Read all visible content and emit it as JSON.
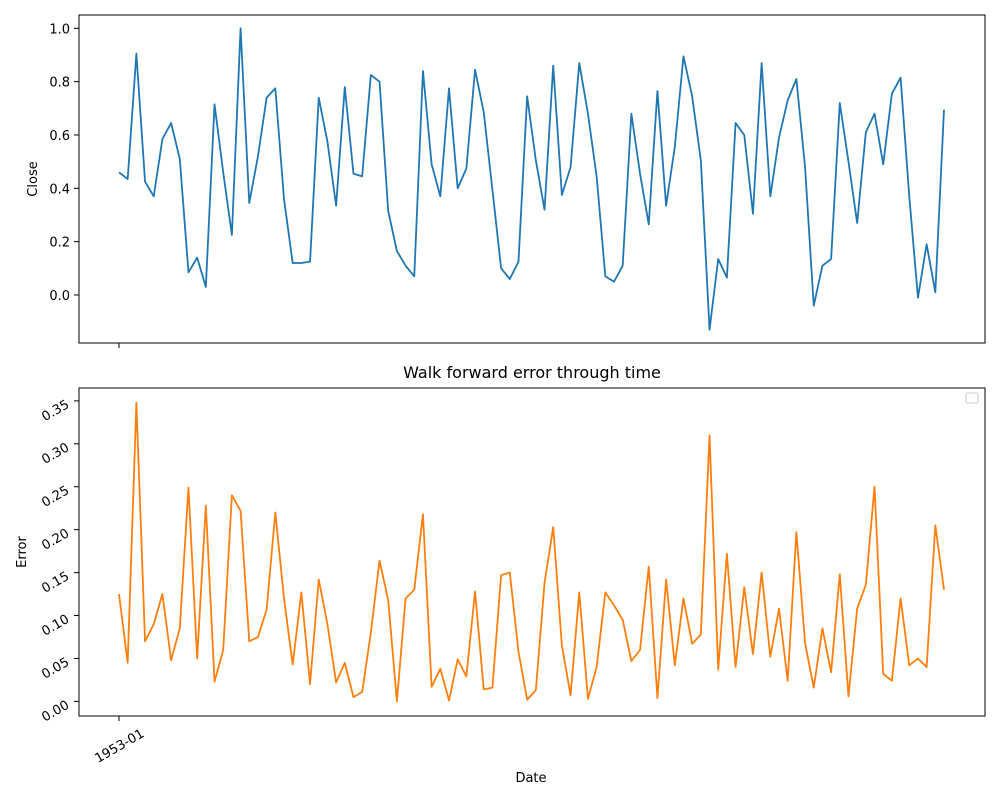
{
  "chart_data": [
    {
      "type": "line",
      "title": "",
      "xlabel": "",
      "ylabel": "Close",
      "ylim": [
        -0.18,
        1.05
      ],
      "yticks": [
        0.0,
        0.2,
        0.4,
        0.6,
        0.8,
        1.0
      ],
      "ytick_labels": [
        "0.0",
        "0.2",
        "0.4",
        "0.6",
        "0.8",
        "1.0"
      ],
      "grid": false,
      "series": [
        {
          "color": "#1f77b4",
          "values": [
            0.46,
            0.435,
            0.905,
            0.425,
            0.37,
            0.585,
            0.645,
            0.51,
            0.085,
            0.14,
            0.03,
            0.715,
            0.46,
            0.225,
            1.0,
            0.345,
            0.52,
            0.74,
            0.775,
            0.36,
            0.12,
            0.12,
            0.125,
            0.74,
            0.575,
            0.335,
            0.78,
            0.455,
            0.445,
            0.825,
            0.8,
            0.315,
            0.165,
            0.11,
            0.07,
            0.84,
            0.49,
            0.37,
            0.775,
            0.4,
            0.475,
            0.845,
            0.685,
            0.395,
            0.1,
            0.06,
            0.125,
            0.745,
            0.505,
            0.32,
            0.86,
            0.375,
            0.48,
            0.87,
            0.68,
            0.445,
            0.07,
            0.05,
            0.11,
            0.68,
            0.455,
            0.265,
            0.765,
            0.335,
            0.555,
            0.895,
            0.745,
            0.505,
            -0.13,
            0.135,
            0.065,
            0.645,
            0.6,
            0.305,
            0.87,
            0.37,
            0.59,
            0.73,
            0.81,
            0.48,
            -0.04,
            0.11,
            0.135,
            0.72,
            0.5,
            0.27,
            0.61,
            0.68,
            0.49,
            0.755,
            0.815,
            0.37,
            -0.01,
            0.19,
            0.01,
            0.695
          ]
        }
      ]
    },
    {
      "type": "line",
      "title": "Walk forward error through time",
      "xlabel": "Date",
      "ylabel": "Error",
      "ylim": [
        -0.017,
        0.365
      ],
      "yticks": [
        0.0,
        0.05,
        0.1,
        0.15,
        0.2,
        0.25,
        0.3,
        0.35
      ],
      "ytick_labels": [
        "0.00",
        "0.05",
        "0.10",
        "0.15",
        "0.20",
        "0.25",
        "0.30",
        "0.35"
      ],
      "x_ticks": [
        "1953-01"
      ],
      "legend": "top-right (empty)",
      "grid": false,
      "series": [
        {
          "color": "#ff7f0e",
          "values": [
            0.125,
            0.045,
            0.348,
            0.07,
            0.09,
            0.125,
            0.048,
            0.085,
            0.249,
            0.05,
            0.228,
            0.023,
            0.06,
            0.24,
            0.222,
            0.07,
            0.075,
            0.107,
            0.22,
            0.12,
            0.043,
            0.127,
            0.02,
            0.142,
            0.09,
            0.022,
            0.045,
            0.005,
            0.011,
            0.08,
            0.164,
            0.118,
            0.0,
            0.12,
            0.13,
            0.218,
            0.017,
            0.038,
            0.001,
            0.049,
            0.029,
            0.128,
            0.014,
            0.016,
            0.147,
            0.15,
            0.058,
            0.002,
            0.013,
            0.138,
            0.203,
            0.065,
            0.007,
            0.127,
            0.003,
            0.04,
            0.127,
            0.112,
            0.095,
            0.047,
            0.06,
            0.157,
            0.004,
            0.142,
            0.042,
            0.12,
            0.067,
            0.078,
            0.31,
            0.037,
            0.172,
            0.04,
            0.133,
            0.055,
            0.15,
            0.052,
            0.108,
            0.024,
            0.197,
            0.068,
            0.016,
            0.085,
            0.034,
            0.148,
            0.006,
            0.108,
            0.136,
            0.25,
            0.032,
            0.024,
            0.12,
            0.042,
            0.05,
            0.04,
            0.205,
            0.13
          ]
        }
      ]
    }
  ]
}
